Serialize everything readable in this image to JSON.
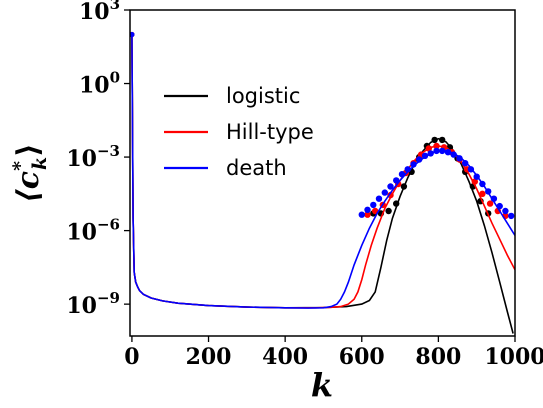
{
  "chart_data": {
    "type": "line",
    "title": "",
    "xlabel": "k",
    "ylabel": "⟨c*_k⟩",
    "xlim": [
      -5,
      1000
    ],
    "ylim_log10": [
      -10.3,
      3
    ],
    "y_scale": "log",
    "x_ticks": [
      0,
      200,
      400,
      600,
      800,
      1000
    ],
    "x_tick_labels": [
      "0",
      "200",
      "400",
      "600",
      "800",
      "1000"
    ],
    "y_ticks_log10": [
      3,
      0,
      -3,
      -6,
      -9
    ],
    "y_tick_mantissa": "10",
    "y_tick_exponents": [
      "3",
      "0",
      "−3",
      "−6",
      "−9"
    ],
    "legend_position": "upper-left",
    "grid": false,
    "series": [
      {
        "name": "logistic",
        "color": "#000000",
        "line": {
          "x": [
            0,
            3,
            6,
            10,
            15,
            20,
            30,
            50,
            80,
            120,
            200,
            300,
            400,
            500,
            560,
            600,
            620,
            635,
            650,
            665,
            680,
            700,
            720,
            740,
            760,
            780,
            800,
            820,
            840,
            860,
            880,
            900,
            920,
            940,
            960,
            980,
            995
          ],
          "log10": [
            2.0,
            -5.5,
            -7.7,
            -8.1,
            -8.3,
            -8.45,
            -8.6,
            -8.75,
            -8.87,
            -8.96,
            -9.06,
            -9.12,
            -9.15,
            -9.14,
            -9.1,
            -9.0,
            -8.85,
            -8.5,
            -7.5,
            -6.4,
            -5.5,
            -4.6,
            -3.85,
            -3.2,
            -2.75,
            -2.4,
            -2.25,
            -2.38,
            -2.75,
            -3.3,
            -4.0,
            -4.8,
            -5.8,
            -6.9,
            -8.1,
            -9.3,
            -10.2
          ]
        },
        "points": {
          "x": [
            630,
            650,
            670,
            690,
            710,
            730,
            750,
            770,
            790,
            810,
            830,
            850,
            870,
            890,
            910,
            930
          ],
          "log10": [
            -5.3,
            -5.3,
            -5.2,
            -4.9,
            -4.2,
            -3.6,
            -3.0,
            -2.55,
            -2.3,
            -2.3,
            -2.6,
            -3.05,
            -3.6,
            -4.2,
            -4.8,
            -5.3
          ]
        }
      },
      {
        "name": "Hill-type",
        "color": "#ff0000",
        "line": {
          "x": [
            0,
            3,
            6,
            10,
            15,
            20,
            30,
            50,
            80,
            120,
            200,
            300,
            400,
            480,
            520,
            545,
            565,
            580,
            590,
            600,
            610,
            625,
            640,
            660,
            680,
            700,
            720,
            740,
            760,
            780,
            800,
            820,
            840,
            860,
            880,
            900,
            920,
            940,
            960,
            980,
            1000
          ],
          "log10": [
            2.0,
            -5.5,
            -7.7,
            -8.1,
            -8.3,
            -8.45,
            -8.6,
            -8.75,
            -8.87,
            -8.96,
            -9.06,
            -9.12,
            -9.15,
            -9.15,
            -9.13,
            -9.1,
            -9.0,
            -8.8,
            -8.5,
            -8.0,
            -7.4,
            -6.6,
            -5.9,
            -5.1,
            -4.5,
            -3.95,
            -3.5,
            -3.1,
            -2.8,
            -2.6,
            -2.55,
            -2.6,
            -2.85,
            -3.2,
            -3.7,
            -4.3,
            -5.0,
            -5.7,
            -6.35,
            -7.0,
            -7.6
          ]
        },
        "points": {
          "x": [
            615,
            635,
            655,
            675,
            695,
            715,
            735,
            755,
            775,
            795,
            815,
            835,
            855,
            875,
            895,
            915,
            935,
            955,
            975
          ],
          "log10": [
            -5.35,
            -5.2,
            -4.95,
            -4.55,
            -4.1,
            -3.65,
            -3.25,
            -2.9,
            -2.65,
            -2.55,
            -2.6,
            -2.8,
            -3.1,
            -3.5,
            -4.0,
            -4.5,
            -4.9,
            -5.2,
            -5.4
          ]
        }
      },
      {
        "name": "death",
        "color": "#0000ff",
        "line": {
          "x": [
            0,
            3,
            6,
            10,
            15,
            20,
            30,
            50,
            80,
            120,
            200,
            300,
            400,
            460,
            500,
            520,
            535,
            545,
            555,
            565,
            580,
            600,
            620,
            640,
            660,
            680,
            700,
            720,
            740,
            760,
            780,
            800,
            820,
            840,
            860,
            880,
            900,
            920,
            940,
            960,
            980,
            1000
          ],
          "log10": [
            2.0,
            -5.5,
            -7.7,
            -8.1,
            -8.3,
            -8.45,
            -8.6,
            -8.75,
            -8.87,
            -8.96,
            -9.06,
            -9.12,
            -9.15,
            -9.16,
            -9.15,
            -9.1,
            -9.0,
            -8.8,
            -8.5,
            -8.1,
            -7.4,
            -6.6,
            -5.9,
            -5.3,
            -4.8,
            -4.35,
            -3.95,
            -3.6,
            -3.3,
            -3.05,
            -2.85,
            -2.75,
            -2.75,
            -2.85,
            -3.05,
            -3.35,
            -3.75,
            -4.2,
            -4.7,
            -5.2,
            -5.7,
            -6.2
          ]
        },
        "points": {
          "x": [
            600,
            615,
            630,
            645,
            660,
            675,
            690,
            705,
            720,
            735,
            750,
            765,
            780,
            795,
            810,
            825,
            840,
            855,
            870,
            885,
            900,
            915,
            930,
            945,
            960,
            975,
            990
          ],
          "log10": [
            -5.35,
            -5.15,
            -4.95,
            -4.7,
            -4.45,
            -4.2,
            -3.95,
            -3.7,
            -3.5,
            -3.3,
            -3.1,
            -2.95,
            -2.85,
            -2.75,
            -2.75,
            -2.8,
            -2.9,
            -3.05,
            -3.25,
            -3.5,
            -3.8,
            -4.1,
            -4.4,
            -4.7,
            -5.0,
            -5.2,
            -5.4
          ]
        }
      }
    ]
  }
}
